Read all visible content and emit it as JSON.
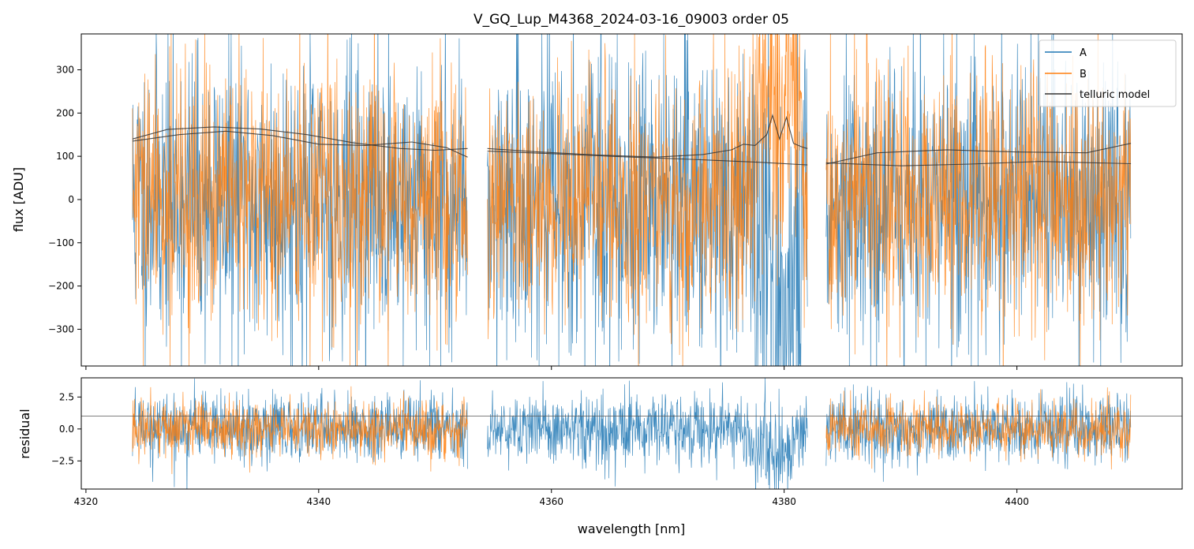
{
  "chart_data": [
    {
      "type": "line",
      "title": "V_GQ_Lup_M4368_2024-03-16_09003  order 05",
      "xlabel": "",
      "ylabel": "flux [ADU]",
      "xlim": [
        4319.6,
        4414.2
      ],
      "ylim": [
        -385,
        383
      ],
      "x_ticks": [
        4320,
        4340,
        4360,
        4380,
        4400
      ],
      "y_ticks": [
        -300,
        -200,
        -100,
        0,
        100,
        200,
        300
      ],
      "y_tick_labels": [
        "−300",
        "−200",
        "−100",
        "0",
        "100",
        "200",
        "300"
      ],
      "grid": false,
      "legend": "top-right",
      "segments": [
        [
          4324.0,
          4352.8
        ],
        [
          4354.5,
          4382.0
        ],
        [
          4383.6,
          4409.8
        ]
      ],
      "series": [
        {
          "name": "A",
          "color": "#1f77b4",
          "kind": "noise",
          "amplitude": 170
        },
        {
          "name": "B",
          "color": "#ff7f0e",
          "kind": "noise",
          "amplitude": 150
        },
        {
          "name": "telluric model",
          "color": "#333333",
          "kind": "curve",
          "curves": [
            {
              "x": [
                4324.0,
                4327,
                4331,
                4335,
                4339,
                4343,
                4347,
                4350,
                4352.8
              ],
              "y": [
                140,
                162,
                168,
                163,
                150,
                131,
                118,
                114,
                118
              ]
            },
            {
              "x": [
                4324.0,
                4328,
                4332,
                4336,
                4340,
                4344,
                4348,
                4351,
                4352.8
              ],
              "y": [
                135,
                150,
                158,
                148,
                128,
                125,
                133,
                120,
                98
              ]
            },
            {
              "x": [
                4354.5,
                4359,
                4364,
                4369,
                4373,
                4375.5,
                4376.5,
                4377.5,
                4378.5,
                4379.0,
                4379.6,
                4380.2,
                4380.8,
                4381.5,
                4382.0
              ],
              "y": [
                118,
                110,
                103,
                98,
                104,
                115,
                128,
                125,
                150,
                195,
                140,
                190,
                130,
                122,
                118
              ]
            },
            {
              "x": [
                4354.5,
                4360,
                4366,
                4372,
                4378,
                4382.0
              ],
              "y": [
                112,
                106,
                99,
                93,
                86,
                80
              ]
            },
            {
              "x": [
                4383.6,
                4388,
                4394,
                4400,
                4406,
                4409.8
              ],
              "y": [
                82,
                108,
                115,
                110,
                108,
                130
              ]
            },
            {
              "x": [
                4383.6,
                4390,
                4396,
                4402,
                4409.8
              ],
              "y": [
                85,
                78,
                82,
                88,
                83
              ]
            }
          ]
        }
      ]
    },
    {
      "type": "line",
      "title": "",
      "xlabel": "wavelength [nm]",
      "ylabel": "residual",
      "xlim": [
        4319.6,
        4414.2
      ],
      "ylim": [
        -4.7,
        4.0
      ],
      "x_ticks": [
        4320,
        4340,
        4360,
        4380,
        4400
      ],
      "x_tick_labels": [
        "4320",
        "4340",
        "4360",
        "4380",
        "4400"
      ],
      "y_ticks": [
        -2.5,
        0.0,
        2.5
      ],
      "y_tick_labels": [
        "−2.5",
        "0.0",
        "2.5"
      ],
      "grid": false,
      "reference_line": 1.0,
      "series": [
        {
          "name": "A",
          "color": "#1f77b4",
          "kind": "noise",
          "amplitude": 1.7
        },
        {
          "name": "B",
          "color": "#ff7f0e",
          "kind": "noise",
          "amplitude": 1.5
        }
      ]
    }
  ]
}
